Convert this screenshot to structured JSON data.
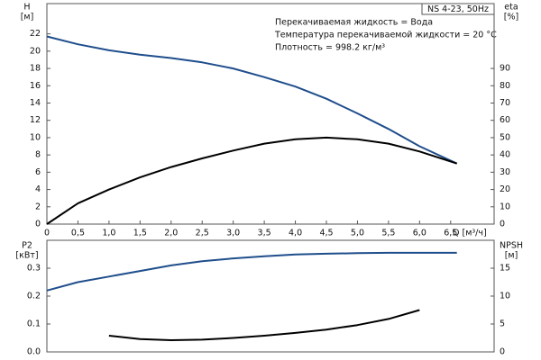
{
  "chart_data": [
    {
      "type": "line",
      "annotation": "NS 4-23, 50Hz",
      "notes": [
        "Перекачиваемая жидкость = Вода",
        "Температура перекачиваемой жидкости = 20 °C",
        "Плотность = 998.2 кг/м³"
      ],
      "ylabel": "H",
      "ylabel_unit": "[м]",
      "y2label": "eta",
      "y2label_unit": "[%]",
      "xlabel": "Q [м³/ч]",
      "xlim": [
        0,
        7.2
      ],
      "ylim": [
        0,
        25.5
      ],
      "y2lim": [
        0,
        127.5
      ],
      "xticks": [
        0,
        {
          "value": 0.5,
          "label": "0,5"
        },
        {
          "value": 1,
          "label": "1,0"
        },
        {
          "value": 1.5,
          "label": "1,5"
        },
        {
          "value": 2,
          "label": "2,0"
        },
        {
          "value": 2.5,
          "label": "2,5"
        },
        {
          "value": 3,
          "label": "3,0"
        },
        {
          "value": 3.5,
          "label": "3,5"
        },
        {
          "value": 4,
          "label": "4,0"
        },
        {
          "value": 4.5,
          "label": "4,5"
        },
        {
          "value": 5,
          "label": "5,0"
        },
        {
          "value": 5.5,
          "label": "5,5"
        },
        {
          "value": 6,
          "label": "6,0"
        },
        {
          "value": 6.5,
          "label": "6,5"
        }
      ],
      "yticks": [
        0,
        2,
        4,
        6,
        8,
        10,
        12,
        14,
        16,
        18,
        20,
        22
      ],
      "y2ticks": [
        0,
        10,
        20,
        30,
        40,
        50,
        60,
        70,
        80,
        90
      ],
      "series": [
        {
          "name": "H",
          "color": "#1f4e8c",
          "x": [
            0,
            0.5,
            1,
            1.5,
            2,
            2.5,
            3,
            3.5,
            4,
            4.5,
            5,
            5.5,
            6,
            6.6
          ],
          "values": [
            21.7,
            20.8,
            20.1,
            19.6,
            19.2,
            18.7,
            18.0,
            17.0,
            15.9,
            14.5,
            12.8,
            11.0,
            9.0,
            7.0
          ]
        },
        {
          "name": "eta",
          "color": "#000000",
          "axis": "y2",
          "x": [
            0,
            0.5,
            1,
            1.5,
            2,
            2.5,
            3,
            3.5,
            4,
            4.5,
            5,
            5.5,
            6,
            6.6
          ],
          "values": [
            0,
            12,
            20,
            27,
            33,
            38,
            42.5,
            46.5,
            49,
            50,
            49,
            46.5,
            42,
            35
          ]
        }
      ]
    },
    {
      "type": "line",
      "ylabel": "P2",
      "ylabel_unit": "[кВт]",
      "y2label": "NPSH",
      "y2label_unit": "[м]",
      "xlim": [
        0,
        7.2
      ],
      "ylim": [
        0,
        0.4
      ],
      "y2lim": [
        0,
        20
      ],
      "yticks": [
        {
          "value": 0,
          "label": "0.0"
        },
        0.1,
        0.2,
        0.3
      ],
      "y2ticks": [
        0,
        5,
        10,
        15
      ],
      "series": [
        {
          "name": "P2",
          "color": "#1f4e8c",
          "x": [
            0,
            0.5,
            1,
            1.5,
            2,
            2.5,
            3,
            3.5,
            4,
            4.5,
            5,
            5.5,
            6,
            6.6
          ],
          "values": [
            0.22,
            0.25,
            0.27,
            0.29,
            0.31,
            0.325,
            0.335,
            0.343,
            0.349,
            0.352,
            0.354,
            0.355,
            0.355,
            0.355
          ]
        },
        {
          "name": "NPSH",
          "color": "#000000",
          "axis": "y2",
          "x": [
            1,
            1.5,
            2,
            2.5,
            3,
            3.5,
            4,
            4.5,
            5,
            5.5,
            6
          ],
          "values": [
            2.9,
            2.3,
            2.1,
            2.2,
            2.5,
            2.9,
            3.4,
            4.0,
            4.8,
            5.9,
            7.5
          ]
        }
      ]
    }
  ]
}
